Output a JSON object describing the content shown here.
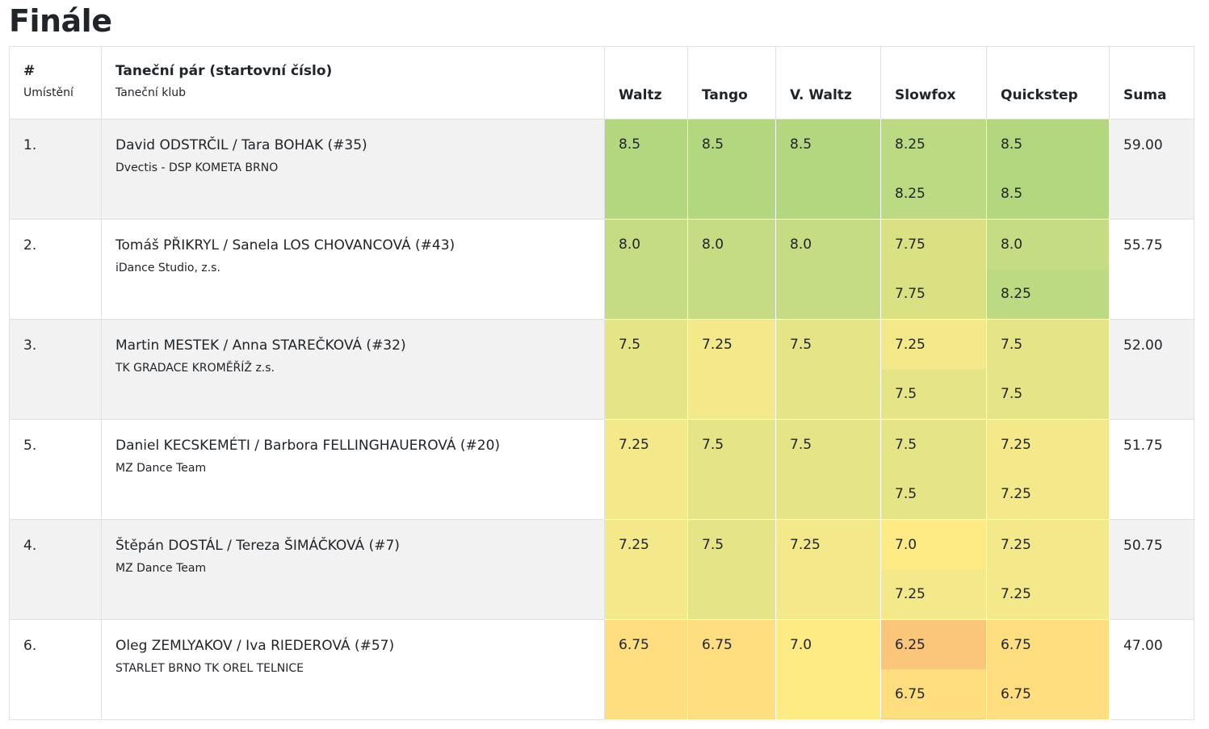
{
  "title": "Finále",
  "headers": {
    "rank_main": "#",
    "rank_sub": "Umístění",
    "pair_main": "Taneční pár (startovní číslo)",
    "pair_sub": "Taneční klub",
    "dances": [
      "Waltz",
      "Tango",
      "V. Waltz",
      "Slowfox",
      "Quickstep"
    ],
    "sum": "Suma"
  },
  "colors": {
    "s8_5": "#b3d77f",
    "s8_25": "#bcda81",
    "s8_0": "#c6dc83",
    "s7_75": "#d9e183",
    "s7_5": "#e5e486",
    "s7_25": "#f3e88a",
    "s7_0": "#ffeb84",
    "s6_75": "#fede7f",
    "s6_25": "#fcc67a"
  },
  "rows": [
    {
      "rank": "1.",
      "pair": "David ODSTRČIL / Tara BOHAK (#35)",
      "club": "Dvectis - DSP KOMETA BRNO",
      "scores": [
        [
          "8.5"
        ],
        [
          "8.5"
        ],
        [
          "8.5"
        ],
        [
          "8.25",
          "8.25"
        ],
        [
          "8.5",
          "8.5"
        ]
      ],
      "sum": "59.00"
    },
    {
      "rank": "2.",
      "pair": "Tomáš PŘIKRYL / Sanela LOS CHOVANCOVÁ (#43)",
      "club": "iDance Studio, z.s.",
      "scores": [
        [
          "8.0"
        ],
        [
          "8.0"
        ],
        [
          "8.0"
        ],
        [
          "7.75",
          "7.75"
        ],
        [
          "8.0",
          "8.25"
        ]
      ],
      "sum": "55.75"
    },
    {
      "rank": "3.",
      "pair": "Martin MESTEK / Anna STAREČKOVÁ (#32)",
      "club": "TK GRADACE KROMĚŘÍŽ z.s.",
      "scores": [
        [
          "7.5"
        ],
        [
          "7.25"
        ],
        [
          "7.5"
        ],
        [
          "7.25",
          "7.5"
        ],
        [
          "7.5",
          "7.5"
        ]
      ],
      "sum": "52.00"
    },
    {
      "rank": "5.",
      "pair": "Daniel KECSKEMÉTI / Barbora FELLINGHAUEROVÁ (#20)",
      "club": "MZ Dance Team",
      "scores": [
        [
          "7.25"
        ],
        [
          "7.5"
        ],
        [
          "7.5"
        ],
        [
          "7.5",
          "7.5"
        ],
        [
          "7.25",
          "7.25"
        ]
      ],
      "sum": "51.75"
    },
    {
      "rank": "4.",
      "pair": "Štěpán DOSTÁL / Tereza ŠIMÁČKOVÁ (#7)",
      "club": "MZ Dance Team",
      "scores": [
        [
          "7.25"
        ],
        [
          "7.5"
        ],
        [
          "7.25"
        ],
        [
          "7.0",
          "7.25"
        ],
        [
          "7.25",
          "7.25"
        ]
      ],
      "sum": "50.75"
    },
    {
      "rank": "6.",
      "pair": "Oleg ZEMLYAKOV / Iva RIEDEROVÁ (#57)",
      "club": "STARLET BRNO TK OREL TELNICE",
      "scores": [
        [
          "6.75"
        ],
        [
          "6.75"
        ],
        [
          "7.0"
        ],
        [
          "6.25",
          "6.75"
        ],
        [
          "6.75",
          "6.75"
        ]
      ],
      "sum": "47.00"
    }
  ]
}
